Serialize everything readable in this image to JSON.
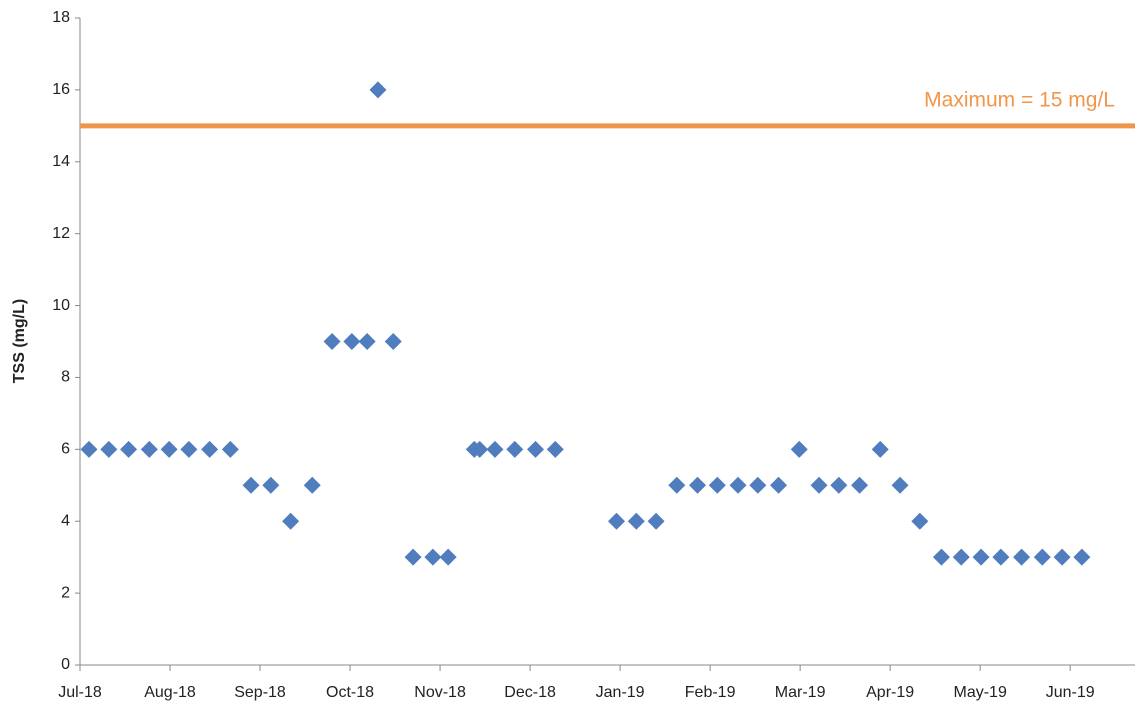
{
  "chart_data": {
    "type": "scatter",
    "ylabel": "TSS (mg/L)",
    "color": "#4f7dbd",
    "x": [
      0.1,
      0.32,
      0.54,
      0.77,
      0.99,
      1.21,
      1.44,
      1.67,
      1.9,
      2.12,
      2.34,
      2.58,
      2.8,
      3.02,
      3.19,
      3.31,
      3.48,
      3.7,
      3.92,
      4.09,
      4.38,
      4.44,
      4.61,
      4.83,
      5.06,
      5.28,
      5.96,
      6.18,
      6.4,
      6.63,
      6.86,
      7.08,
      7.31,
      7.53,
      7.76,
      7.99,
      8.21,
      8.43,
      8.66,
      8.89,
      9.11,
      9.33,
      9.57,
      9.79,
      10.01,
      10.23,
      10.46,
      10.69,
      10.91,
      11.13
    ],
    "values": [
      6,
      6,
      6,
      6,
      6,
      6,
      6,
      6,
      5,
      5,
      4,
      5,
      9,
      9,
      9,
      16,
      9,
      3,
      3,
      3,
      6,
      6,
      6,
      6,
      6,
      6,
      4,
      4,
      4,
      5,
      5,
      5,
      5,
      5,
      5,
      6,
      5,
      5,
      5,
      6,
      5,
      4,
      3,
      3,
      3,
      3,
      3,
      3,
      3,
      3
    ],
    "xlim": [
      0,
      11.72
    ],
    "xticks": [
      {
        "value": 0,
        "label": "Jul-18"
      },
      {
        "value": 1,
        "label": "Aug-18"
      },
      {
        "value": 2,
        "label": "Sep-18"
      },
      {
        "value": 3,
        "label": "Oct-18"
      },
      {
        "value": 4,
        "label": "Nov-18"
      },
      {
        "value": 5,
        "label": "Dec-18"
      },
      {
        "value": 6,
        "label": "Jan-19"
      },
      {
        "value": 7,
        "label": "Feb-19"
      },
      {
        "value": 8,
        "label": "Mar-19"
      },
      {
        "value": 9,
        "label": "Apr-19"
      },
      {
        "value": 10,
        "label": "May-19"
      },
      {
        "value": 11,
        "label": "Jun-19"
      }
    ],
    "ylim": [
      0,
      18
    ],
    "yticks": [
      0,
      2,
      4,
      6,
      8,
      10,
      12,
      14,
      16,
      18
    ],
    "reference_line": {
      "value": 15,
      "label": "Maximum = 15 mg/L",
      "color": "#f0964a"
    }
  }
}
